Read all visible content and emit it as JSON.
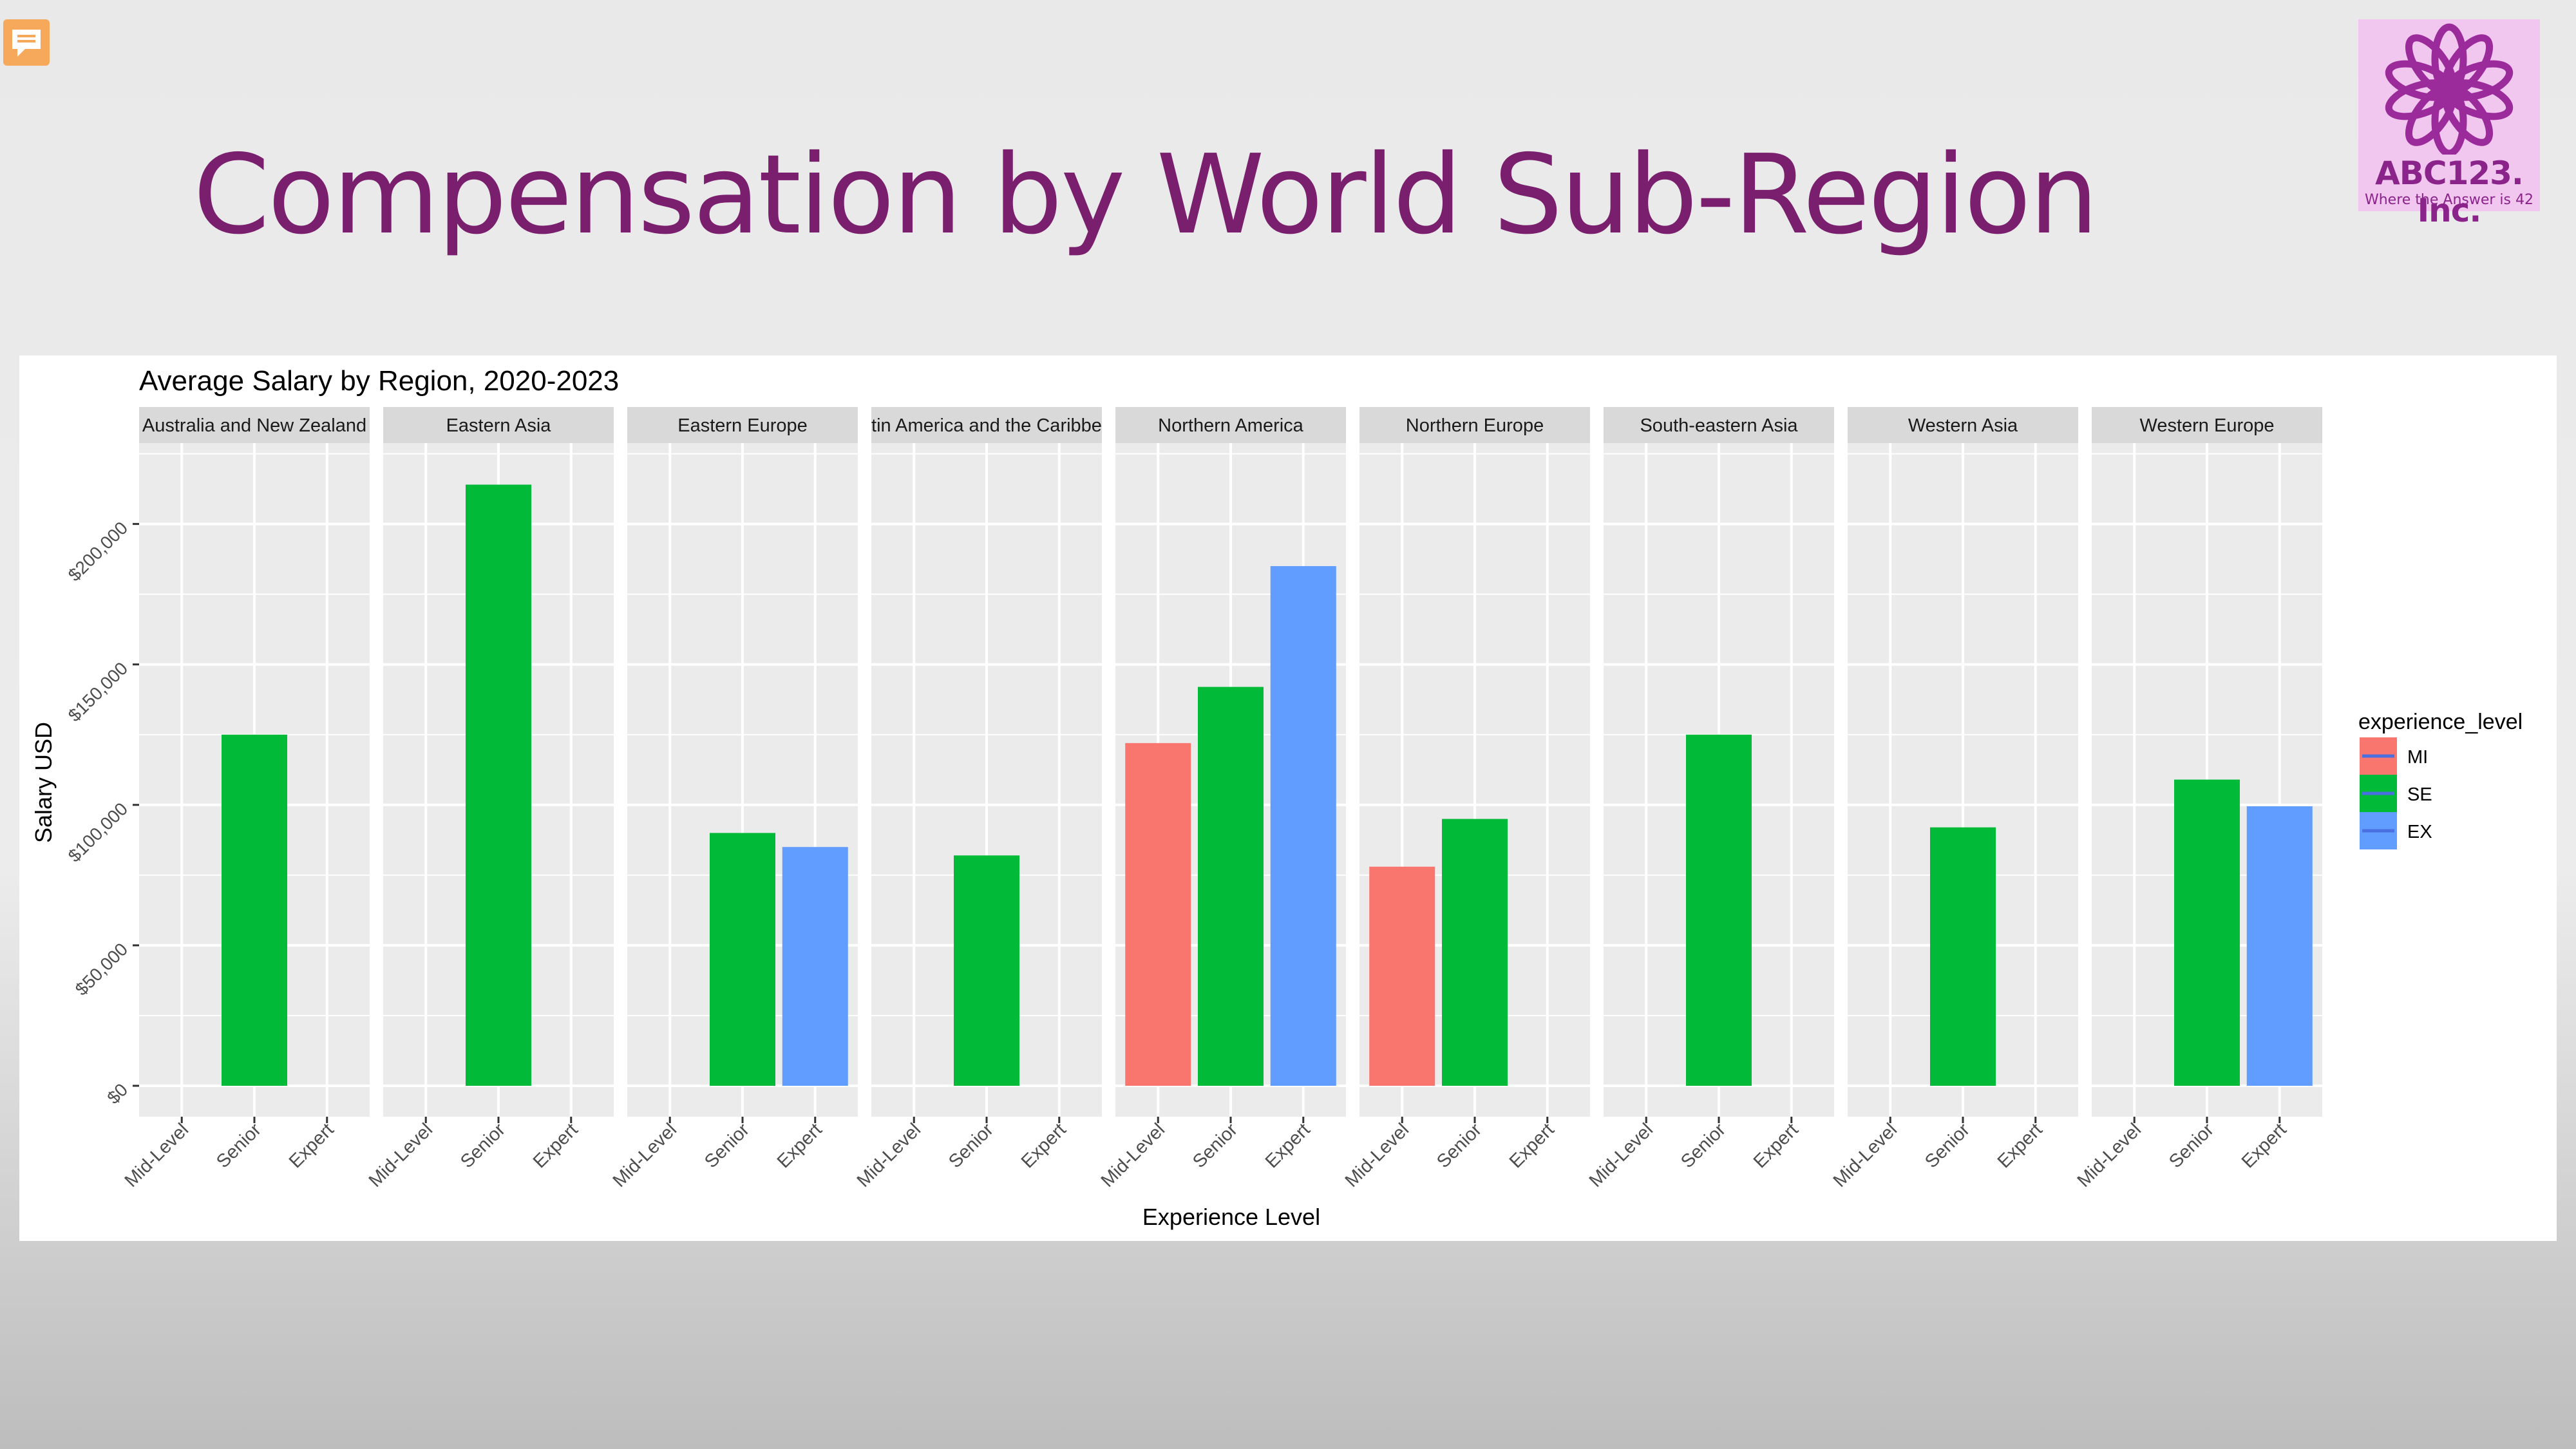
{
  "slide": {
    "title": "Compensation by World Sub-Region",
    "comment_icon": "speech-bubble-icon"
  },
  "logo": {
    "icon": "flower-icon",
    "name": "ABC123. Inc.",
    "tagline": "Where the Answer is 42",
    "color": "#8a248a"
  },
  "chart_data": {
    "type": "bar",
    "title": "Average Salary by Region, 2020-2023",
    "xlabel": "Experience Level",
    "ylabel": "Salary USD",
    "ylim": [
      0,
      225000
    ],
    "yticks": [
      0,
      50000,
      100000,
      150000,
      200000
    ],
    "ytick_labels": [
      "$0",
      "$50,000",
      "$100,000",
      "$150,000",
      "$200,000"
    ],
    "categories": [
      "Mid-Level",
      "Senior",
      "Expert"
    ],
    "grid": true,
    "legend": {
      "title": "experience_level",
      "placement": "right",
      "entries": [
        {
          "label": "MI",
          "color": "#f8766d"
        },
        {
          "label": "SE",
          "color": "#00ba38"
        },
        {
          "label": "EX",
          "color": "#619cff"
        }
      ]
    },
    "facets": [
      {
        "label": "Australia and New Zealand",
        "values": [
          null,
          125000,
          null
        ]
      },
      {
        "label": "Eastern Asia",
        "values": [
          null,
          214000,
          null
        ]
      },
      {
        "label": "Eastern Europe",
        "values": [
          null,
          90000,
          85000
        ]
      },
      {
        "label": "Latin America and the Caribbean",
        "values": [
          null,
          82000,
          null
        ]
      },
      {
        "label": "Northern America",
        "values": [
          122000,
          142000,
          185000
        ]
      },
      {
        "label": "Northern Europe",
        "values": [
          78000,
          95000,
          null
        ]
      },
      {
        "label": "South-eastern Asia",
        "values": [
          null,
          125000,
          null
        ]
      },
      {
        "label": "Western Asia",
        "values": [
          null,
          92000,
          null
        ]
      },
      {
        "label": "Western Europe",
        "values": [
          null,
          109000,
          99500
        ]
      }
    ]
  }
}
